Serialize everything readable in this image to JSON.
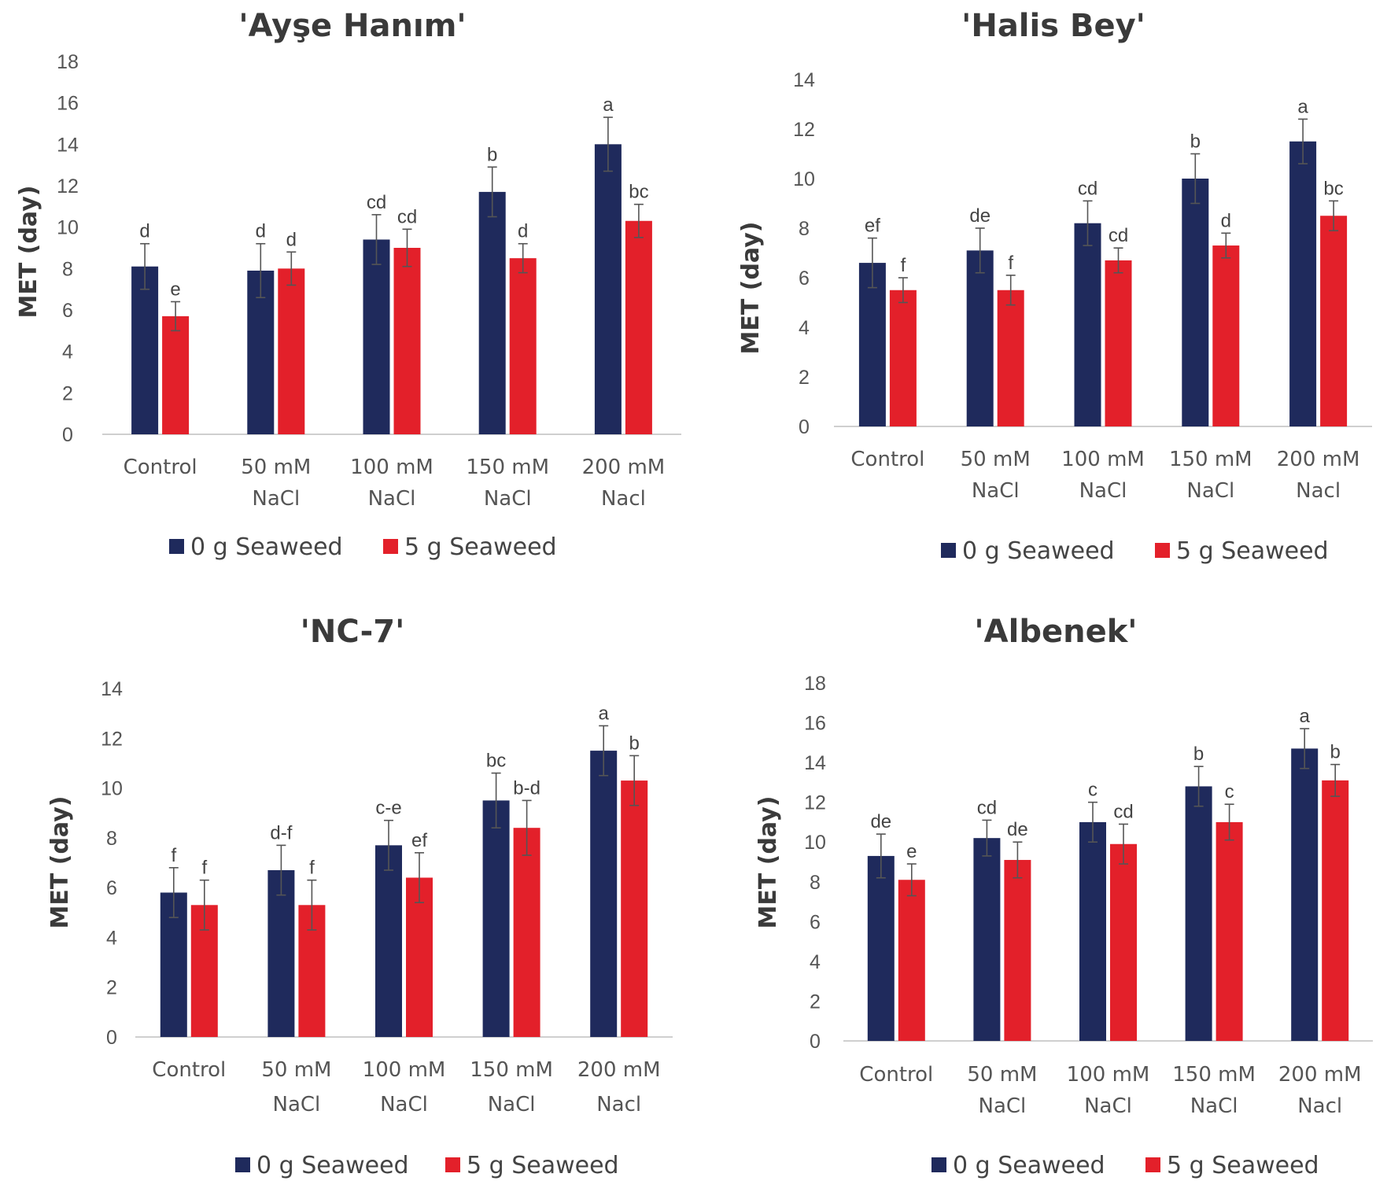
{
  "figure": {
    "y_unit_note": "MET (day)"
  },
  "chart_data": [
    {
      "type": "bar",
      "title": "'Ayşe Hanım'",
      "xlabel": "",
      "ylabel": "MET (day)",
      "ylim": [
        0,
        18
      ],
      "yticks": [
        0,
        2,
        4,
        6,
        8,
        10,
        12,
        14,
        16,
        18
      ],
      "categories": [
        [
          "Control"
        ],
        [
          "50 mM",
          "NaCl"
        ],
        [
          "100 mM",
          "NaCl"
        ],
        [
          "150 mM",
          "NaCl"
        ],
        [
          "200 mM",
          "Nacl"
        ]
      ],
      "series": [
        {
          "name": "0 g Seaweed",
          "color": "#1f2a5c",
          "values": [
            8.1,
            7.9,
            9.4,
            11.7,
            14.0
          ],
          "errors": [
            1.1,
            1.3,
            1.2,
            1.2,
            1.3
          ],
          "labels": [
            "d",
            "d",
            "cd",
            "b",
            "a"
          ]
        },
        {
          "name": "5 g Seaweed",
          "color": "#e3202a",
          "values": [
            5.7,
            8.0,
            9.0,
            8.5,
            10.3
          ],
          "errors": [
            0.7,
            0.8,
            0.9,
            0.7,
            0.8
          ],
          "labels": [
            "e",
            "d",
            "cd",
            "d",
            "bc"
          ]
        }
      ],
      "legend": "bottom"
    },
    {
      "type": "bar",
      "title": "'Halis Bey'",
      "xlabel": "",
      "ylabel": "MET (day)",
      "ylim": [
        0,
        14
      ],
      "yticks": [
        0,
        2,
        4,
        6,
        8,
        10,
        12,
        14
      ],
      "categories": [
        [
          "Control"
        ],
        [
          "50 mM",
          "NaCl"
        ],
        [
          "100 mM",
          "NaCl"
        ],
        [
          "150 mM",
          "NaCl"
        ],
        [
          "200 mM",
          "Nacl"
        ]
      ],
      "series": [
        {
          "name": "0 g Seaweed",
          "color": "#1f2a5c",
          "values": [
            6.6,
            7.1,
            8.2,
            10.0,
            11.5
          ],
          "errors": [
            1.0,
            0.9,
            0.9,
            1.0,
            0.9
          ],
          "labels": [
            "ef",
            "de",
            "cd",
            "b",
            "a"
          ]
        },
        {
          "name": "5 g Seaweed",
          "color": "#e3202a",
          "values": [
            5.5,
            5.5,
            6.7,
            7.3,
            8.5
          ],
          "errors": [
            0.5,
            0.6,
            0.5,
            0.5,
            0.6
          ],
          "labels": [
            "f",
            "f",
            "cd",
            "d",
            "bc"
          ]
        }
      ],
      "legend": "bottom"
    },
    {
      "type": "bar",
      "title": "'NC-7'",
      "xlabel": "",
      "ylabel": "MET (day)",
      "ylim": [
        0,
        14
      ],
      "yticks": [
        0,
        2,
        4,
        6,
        8,
        10,
        12,
        14
      ],
      "categories": [
        [
          "Control"
        ],
        [
          "50 mM",
          "NaCl"
        ],
        [
          "100 mM",
          "NaCl"
        ],
        [
          "150 mM",
          "NaCl"
        ],
        [
          "200 mM",
          "Nacl"
        ]
      ],
      "series": [
        {
          "name": "0 g Seaweed",
          "color": "#1f2a5c",
          "values": [
            5.8,
            6.7,
            7.7,
            9.5,
            11.5
          ],
          "errors": [
            1.0,
            1.0,
            1.0,
            1.1,
            1.0
          ],
          "labels": [
            "f",
            "d-f",
            "c-e",
            "bc",
            "a"
          ]
        },
        {
          "name": "5 g Seaweed",
          "color": "#e3202a",
          "values": [
            5.3,
            5.3,
            6.4,
            8.4,
            10.3
          ],
          "errors": [
            1.0,
            1.0,
            1.0,
            1.1,
            1.0
          ],
          "labels": [
            "f",
            "f",
            "ef",
            "b-d",
            "b"
          ]
        }
      ],
      "legend": "bottom"
    },
    {
      "type": "bar",
      "title": "'Albenek'",
      "xlabel": "",
      "ylabel": "MET (day)",
      "ylim": [
        0,
        18
      ],
      "yticks": [
        0,
        2,
        4,
        6,
        8,
        10,
        12,
        14,
        16,
        18
      ],
      "categories": [
        [
          "Control"
        ],
        [
          "50 mM",
          "NaCl"
        ],
        [
          "100 mM",
          "NaCl"
        ],
        [
          "150 mM",
          "NaCl"
        ],
        [
          "200 mM",
          "Nacl"
        ]
      ],
      "series": [
        {
          "name": "0 g Seaweed",
          "color": "#1f2a5c",
          "values": [
            9.3,
            10.2,
            11.0,
            12.8,
            14.7
          ],
          "errors": [
            1.1,
            0.9,
            1.0,
            1.0,
            1.0
          ],
          "labels": [
            "de",
            "cd",
            "c",
            "b",
            "a"
          ]
        },
        {
          "name": "5 g Seaweed",
          "color": "#e3202a",
          "values": [
            8.1,
            9.1,
            9.9,
            11.0,
            13.1
          ],
          "errors": [
            0.8,
            0.9,
            1.0,
            0.9,
            0.8
          ],
          "labels": [
            "e",
            "de",
            "cd",
            "c",
            "b"
          ]
        }
      ],
      "legend": "bottom"
    }
  ]
}
